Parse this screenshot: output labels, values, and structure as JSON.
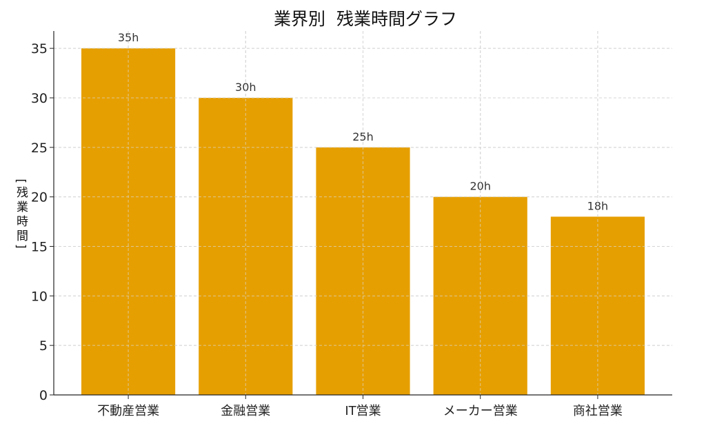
{
  "chart_data": {
    "type": "bar",
    "title": "業界別  残業時間グラフ",
    "xlabel": "",
    "ylabel": "[残業時間]",
    "categories": [
      "不動産営業",
      "金融営業",
      "IT営業",
      "メーカー営業",
      "商社営業"
    ],
    "values": [
      35,
      30,
      25,
      20,
      18
    ],
    "data_labels": [
      "35h",
      "30h",
      "25h",
      "20h",
      "18h"
    ],
    "ylim": [
      0,
      36.75
    ],
    "yticks": [
      0,
      5,
      10,
      15,
      20,
      25,
      30,
      35
    ],
    "grid": true,
    "bar_color": "#E69F00"
  }
}
